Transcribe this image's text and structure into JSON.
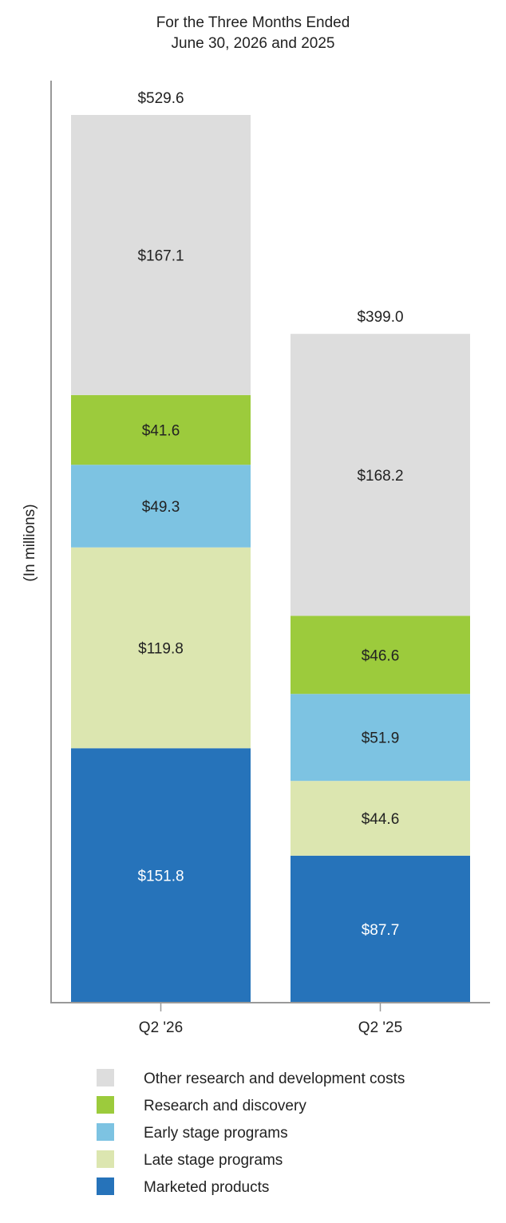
{
  "chart_data": {
    "type": "bar",
    "stacked": true,
    "title_lines": [
      "For the Three Months Ended",
      "June 30, 2026 and 2025"
    ],
    "ylabel": "(In millions)",
    "xlabel": "",
    "categories": [
      "Q2 '26",
      "Q2 '25"
    ],
    "totals": [
      529.6,
      399.0
    ],
    "total_labels": [
      "$529.6",
      "$399.0"
    ],
    "series": [
      {
        "name": "Marketed products",
        "color": "#2673ba",
        "text_color": "#ffffff",
        "values": [
          151.8,
          87.7
        ],
        "labels": [
          "$151.8",
          "$87.7"
        ]
      },
      {
        "name": "Late stage programs",
        "color": "#dce6b0",
        "text_color": "#222222",
        "values": [
          119.8,
          44.6
        ],
        "labels": [
          "$119.8",
          "$44.6"
        ]
      },
      {
        "name": "Early stage programs",
        "color": "#7dc3e2",
        "text_color": "#222222",
        "values": [
          49.3,
          51.9
        ],
        "labels": [
          "$49.3",
          "$51.9"
        ]
      },
      {
        "name": "Research and discovery",
        "color": "#9ccb3c",
        "text_color": "#222222",
        "values": [
          41.6,
          46.6
        ],
        "labels": [
          "$41.6",
          "$46.6"
        ]
      },
      {
        "name": "Other research and development costs",
        "color": "#dddddd",
        "text_color": "#222222",
        "values": [
          167.1,
          168.2
        ],
        "labels": [
          "$167.1",
          "$168.2"
        ]
      }
    ],
    "ylim": [
      0,
      529.6
    ],
    "grid": false,
    "legend_position": "bottom",
    "legend_order": [
      "Other research and development costs",
      "Research and discovery",
      "Early stage programs",
      "Late stage programs",
      "Marketed products"
    ]
  }
}
